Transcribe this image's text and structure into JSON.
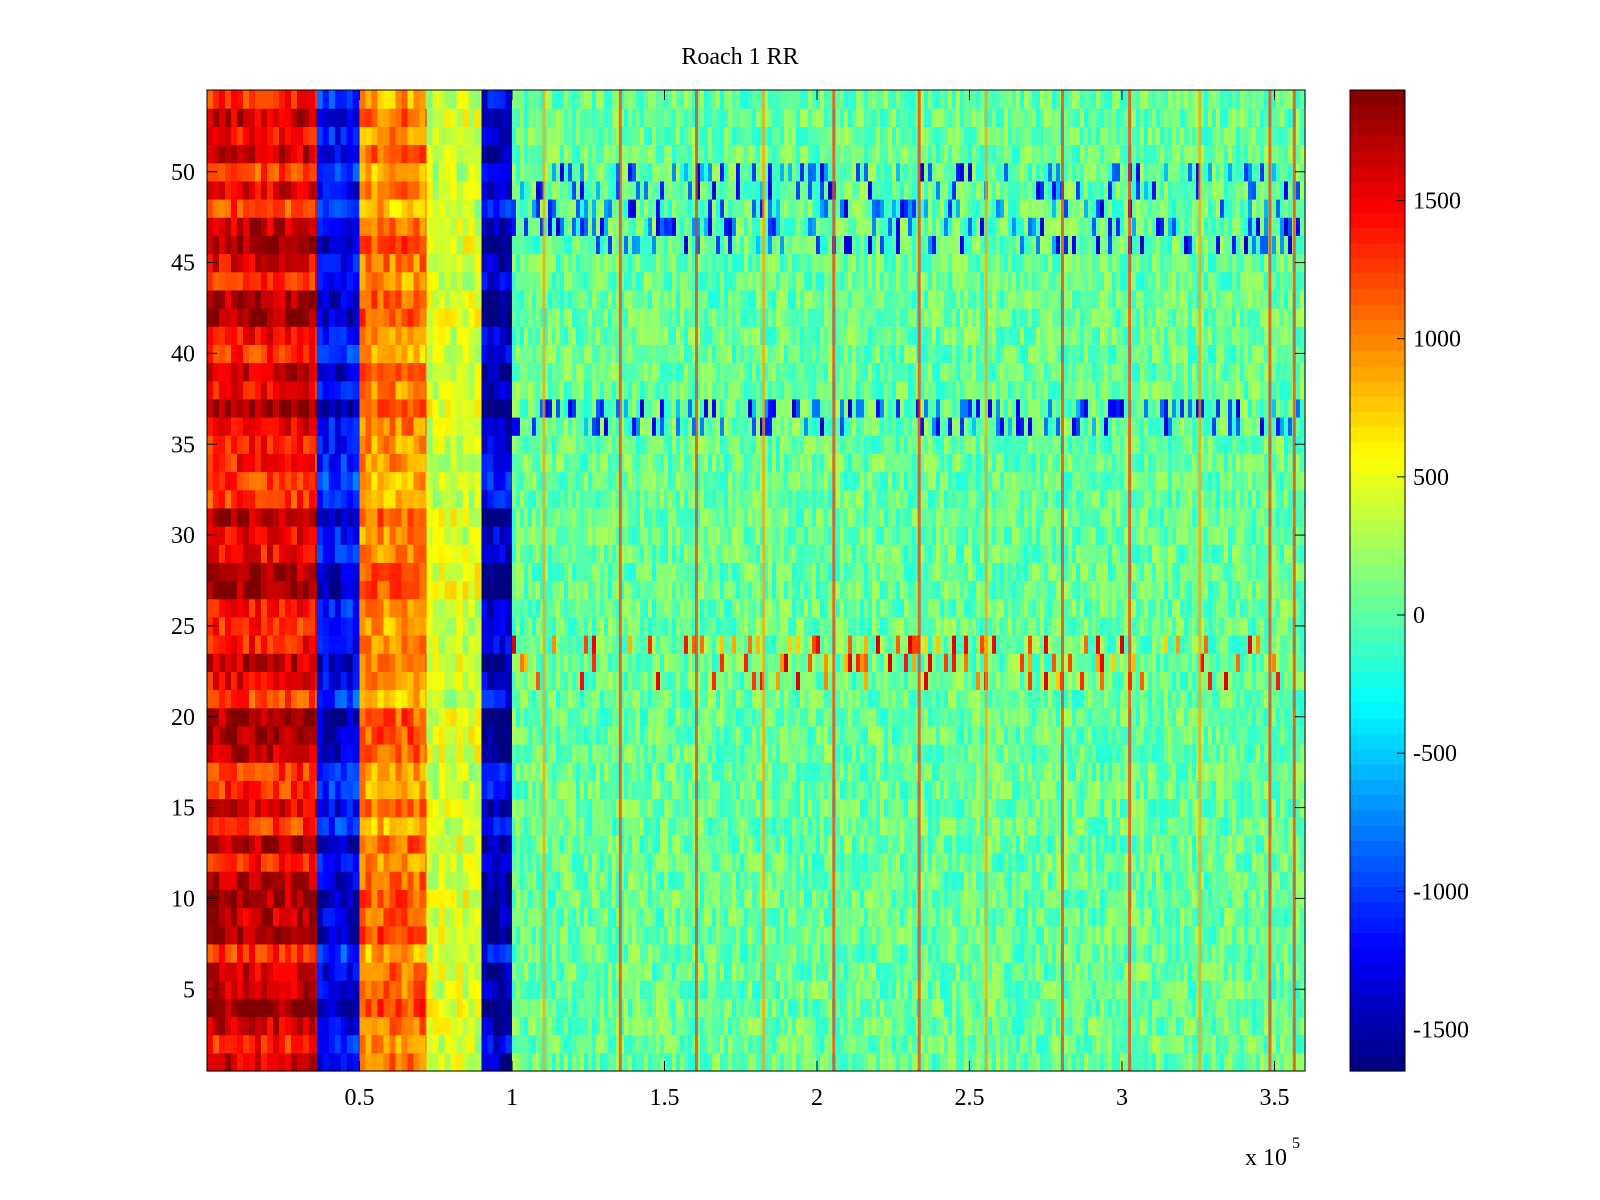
{
  "chart_data": [
    {
      "type": "heatmap",
      "title": "Roach 1 RR",
      "xlabel": "",
      "ylabel": "",
      "x_exponent_label": "x 10",
      "x_exponent": "5",
      "xlim": [
        0,
        3.6
      ],
      "ylim": [
        0.5,
        54.5
      ],
      "x_scale_multiplier": 100000,
      "rows": 54,
      "xticks": [
        0.5,
        1,
        1.5,
        2,
        2.5,
        3,
        3.5
      ],
      "xtick_labels": [
        "0.5",
        "1",
        "1.5",
        "2",
        "2.5",
        "3",
        "3.5"
      ],
      "yticks": [
        5,
        10,
        15,
        20,
        25,
        30,
        35,
        40,
        45,
        50
      ],
      "ytick_labels": [
        "5",
        "10",
        "15",
        "20",
        "25",
        "30",
        "35",
        "40",
        "45",
        "50"
      ],
      "colormap": "jet",
      "clim": [
        -1650,
        1900
      ],
      "colorbar_ticks": [
        1500,
        1000,
        500,
        0,
        -500,
        -1000,
        -1500
      ],
      "colorbar_tick_labels": [
        "1500",
        "1000",
        "500",
        "0",
        "-500",
        "-1000",
        "-1500"
      ],
      "column_bands": [
        {
          "x_range": [
            0,
            0.36
          ],
          "level": "high",
          "approx_value": 1500
        },
        {
          "x_range": [
            0.36,
            0.5
          ],
          "level": "very low",
          "approx_value": -1200
        },
        {
          "x_range": [
            0.5,
            0.72
          ],
          "level": "high",
          "approx_value": 1000
        },
        {
          "x_range": [
            0.72,
            0.9
          ],
          "level": "medium",
          "approx_value": 400
        },
        {
          "x_range": [
            0.9,
            1.0
          ],
          "level": "very low",
          "approx_value": -1400
        },
        {
          "x_range": [
            1.0,
            3.6
          ],
          "level": "near zero",
          "approx_value": 50
        }
      ],
      "row_bands": [
        {
          "rows": [
            22,
            24
          ],
          "description": "scattered high values across x"
        },
        {
          "rows": [
            36,
            37
          ],
          "description": "scattered low values across x"
        },
        {
          "rows": [
            46,
            50
          ],
          "description": "scattered low values across x"
        }
      ]
    }
  ],
  "colors": {
    "background": "#ffffff",
    "axes": "#000000"
  }
}
